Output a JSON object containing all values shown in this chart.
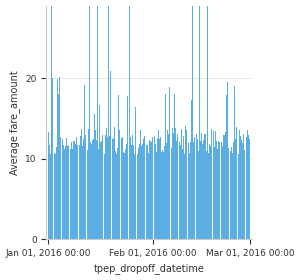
{
  "title": "",
  "xlabel": "tpep_dropoff_datetime",
  "ylabel": "Average fare_amount",
  "bar_color": "#5baee3",
  "background_color": "#ffffff",
  "ylim": [
    0,
    29
  ],
  "yticks": [
    0,
    10,
    20
  ],
  "start_date": "2016-01-01",
  "end_date": "2016-03-01",
  "xlabel_fontsize": 7,
  "ylabel_fontsize": 7,
  "tick_fontsize": 6.5,
  "n_hours": 1440,
  "seed": 1234
}
